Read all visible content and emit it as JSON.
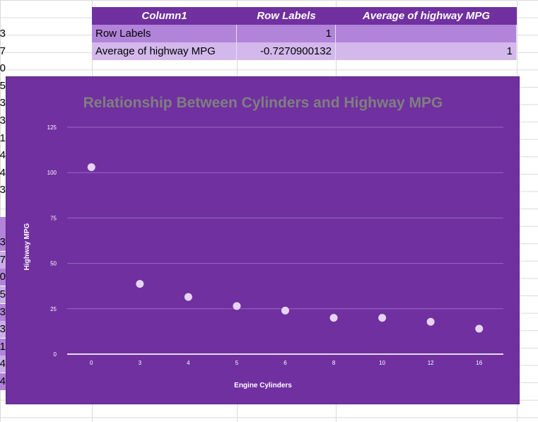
{
  "pivot_table": {
    "headers": [
      "Column1",
      "Row Labels",
      "Average of highway MPG"
    ],
    "rows": [
      [
        "Row Labels",
        "1",
        ""
      ],
      [
        "Average of highway MPG",
        "-0.7270900132",
        "1"
      ]
    ]
  },
  "left_column_fragments": [
    "3",
    "7",
    "0",
    "5",
    "3",
    "3",
    "1",
    "4",
    "4",
    "3",
    "",
    "",
    "3",
    "7",
    "0",
    "5",
    "3",
    "3",
    "1",
    "4",
    "4"
  ],
  "colors": {
    "chart_bg": "#7030a0",
    "header_bg": "#7030a0",
    "row1_bg": "#b184d9",
    "row2_bg": "#d3b8ec",
    "point": "#e6d4f3",
    "title": "#7f7f7f"
  },
  "chart_data": {
    "type": "scatter",
    "title": "Relationship Between Cylinders and Highway MPG",
    "xlabel": "Engine Cylinders",
    "ylabel": "Highway MPG",
    "categories": [
      "0",
      "3",
      "4",
      "5",
      "6",
      "8",
      "10",
      "12",
      "16"
    ],
    "values": [
      103,
      38.7,
      31.5,
      26.5,
      24,
      20,
      20,
      17.8,
      14
    ],
    "ylim": [
      0,
      125
    ],
    "yticks": [
      0,
      25,
      50,
      75,
      100,
      125
    ],
    "grid": true,
    "legend": "none"
  }
}
